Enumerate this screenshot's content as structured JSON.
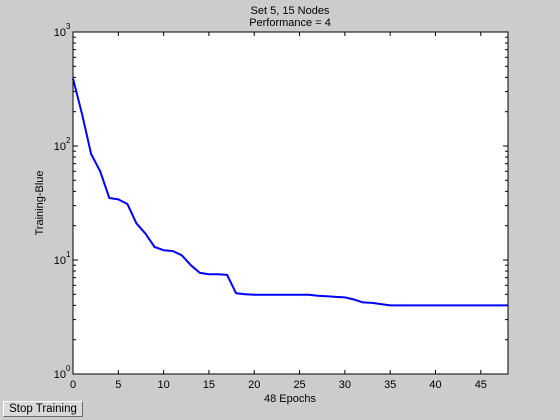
{
  "colors": {
    "figure_bg": "#cccccc",
    "axes_bg": "#ffffff",
    "line": "#0000ff",
    "axes": "#000000"
  },
  "button": {
    "stop_label": "Stop Training"
  },
  "chart_data": {
    "type": "line",
    "title": "Set 5, 15 Nodes",
    "subtitle": "Performance = 4",
    "xlabel": "48 Epochs",
    "ylabel": "Training-Blue",
    "xlim": [
      0,
      48
    ],
    "ylim": [
      1,
      1000
    ],
    "yscale": "log",
    "grid": false,
    "xticks": [
      0,
      5,
      10,
      15,
      20,
      25,
      30,
      35,
      40,
      45
    ],
    "xtick_labels": [
      "0",
      "5",
      "10",
      "15",
      "20",
      "25",
      "30",
      "35",
      "40",
      "45"
    ],
    "yticks": [
      {
        "value": 1,
        "base": "10",
        "exp": "0"
      },
      {
        "value": 10,
        "base": "10",
        "exp": "1"
      },
      {
        "value": 100,
        "base": "10",
        "exp": "2"
      },
      {
        "value": 1000,
        "base": "10",
        "exp": "3"
      }
    ],
    "series": [
      {
        "color": "#0000ff",
        "x": [
          0,
          1,
          2,
          3,
          4,
          5,
          6,
          7,
          8,
          9,
          10,
          11,
          12,
          13,
          14,
          15,
          16,
          17,
          18,
          19,
          20,
          21,
          22,
          23,
          24,
          25,
          26,
          27,
          28,
          29,
          30,
          31,
          32,
          33,
          34,
          35,
          36,
          37,
          38,
          39,
          40,
          41,
          42,
          43,
          44,
          45,
          46,
          47,
          48
        ],
        "y": [
          390,
          190,
          85,
          60,
          35,
          34,
          31,
          21,
          17,
          13,
          12.2,
          12,
          11,
          9,
          7.7,
          7.5,
          7.5,
          7.4,
          5.1,
          5.0,
          4.95,
          4.95,
          4.95,
          4.95,
          4.95,
          4.95,
          4.95,
          4.85,
          4.8,
          4.75,
          4.7,
          4.5,
          4.25,
          4.2,
          4.1,
          4.0,
          4.0,
          4.0,
          4.0,
          4.0,
          4.0,
          4.0,
          4.0,
          4.0,
          4.0,
          4.0,
          4.0,
          4.0,
          4.0
        ]
      }
    ]
  }
}
